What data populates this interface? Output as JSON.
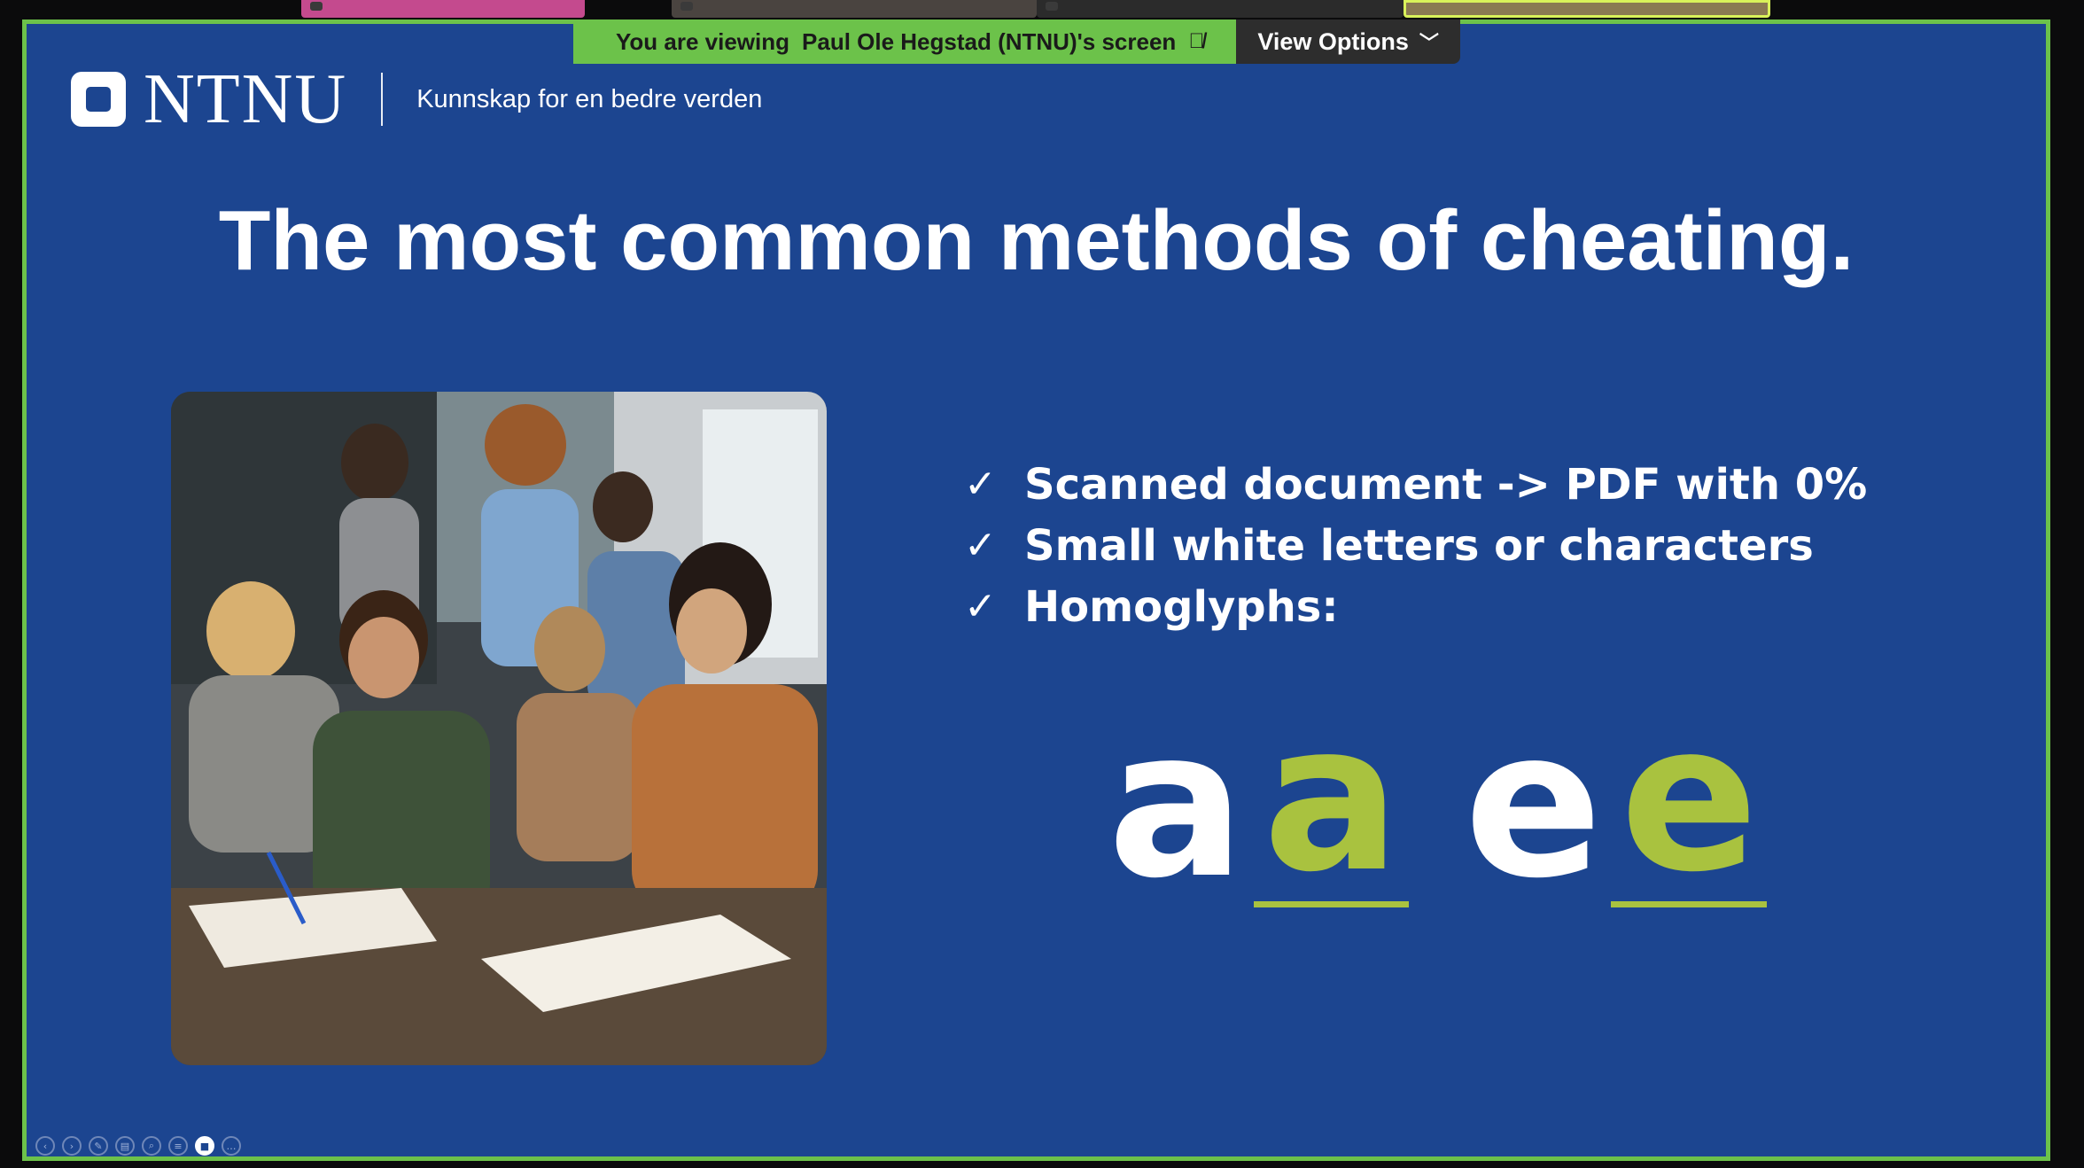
{
  "banner": {
    "prefix": "You are viewing",
    "presenter": "Paul Ole Hegstad (NTNU)'s screen",
    "mic_icon": "mic-muted-icon",
    "view_options": "View Options"
  },
  "slide": {
    "logo_text": "NTNU",
    "tagline": "Kunnskap for en bedre verden",
    "title": "The most common methods of cheating.",
    "bullets": [
      "Scanned document -> PDF with 0%",
      "Small white letters or characters",
      "Homoglyphs:"
    ],
    "glyphs": [
      "a",
      "a",
      "e",
      "e"
    ]
  },
  "colors": {
    "slide_bg": "#1c4590",
    "frame_border": "#6cc24a",
    "highlight_glyph": "#a9c23f",
    "banner_dark": "#2d2d2d"
  },
  "toolbar_icons": [
    "prev-icon",
    "next-icon",
    "pen-icon",
    "slides-icon",
    "zoom-icon",
    "subtitles-icon",
    "camera-icon",
    "more-icon"
  ]
}
